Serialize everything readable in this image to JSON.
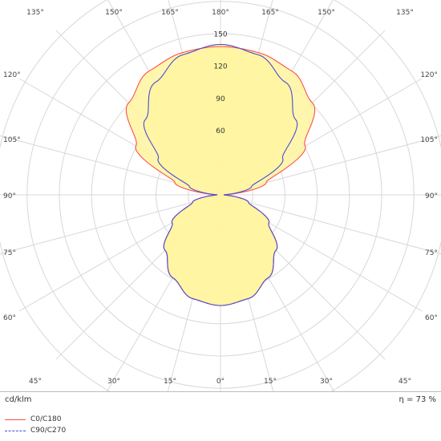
{
  "chart_data": {
    "type": "polar",
    "title": "",
    "unit_label": "cd/klm",
    "efficiency_label": "η = 73 %",
    "radial_ticks": [
      60,
      90,
      120,
      150
    ],
    "rmax": 150,
    "angle_labels_top": [
      "135°",
      "150°",
      "165°",
      "180°",
      "165°",
      "150°",
      "135°"
    ],
    "angle_labels_left": [
      "120°",
      "105°",
      "90°",
      "75°",
      "60°"
    ],
    "angle_labels_right": [
      "120°",
      "105°",
      "90°",
      "75°",
      "60°"
    ],
    "angle_labels_bottom": [
      "45°",
      "30°",
      "15°",
      "0°",
      "15°",
      "30°",
      "45°"
    ],
    "series": [
      {
        "name": "C0/C180",
        "color": "#ff4d4d",
        "dash": "solid",
        "gamma": [
          0,
          15,
          30,
          45,
          60,
          75,
          90,
          105,
          120,
          135,
          150,
          165,
          180
        ],
        "values": [
          103,
          100,
          89,
          73,
          52,
          27,
          3,
          44,
          91,
          121,
          133,
          137,
          138
        ]
      },
      {
        "name": "C90/C270",
        "color": "#4b4bd6",
        "dash": "dashed",
        "gamma": [
          0,
          15,
          30,
          45,
          60,
          75,
          90,
          105,
          120,
          135,
          150,
          165,
          180
        ],
        "values": [
          103,
          100,
          89,
          73,
          52,
          27,
          3,
          30,
          67,
          99,
          121,
          135,
          140
        ]
      }
    ],
    "grid": true,
    "legend_position": "bottom-left"
  }
}
